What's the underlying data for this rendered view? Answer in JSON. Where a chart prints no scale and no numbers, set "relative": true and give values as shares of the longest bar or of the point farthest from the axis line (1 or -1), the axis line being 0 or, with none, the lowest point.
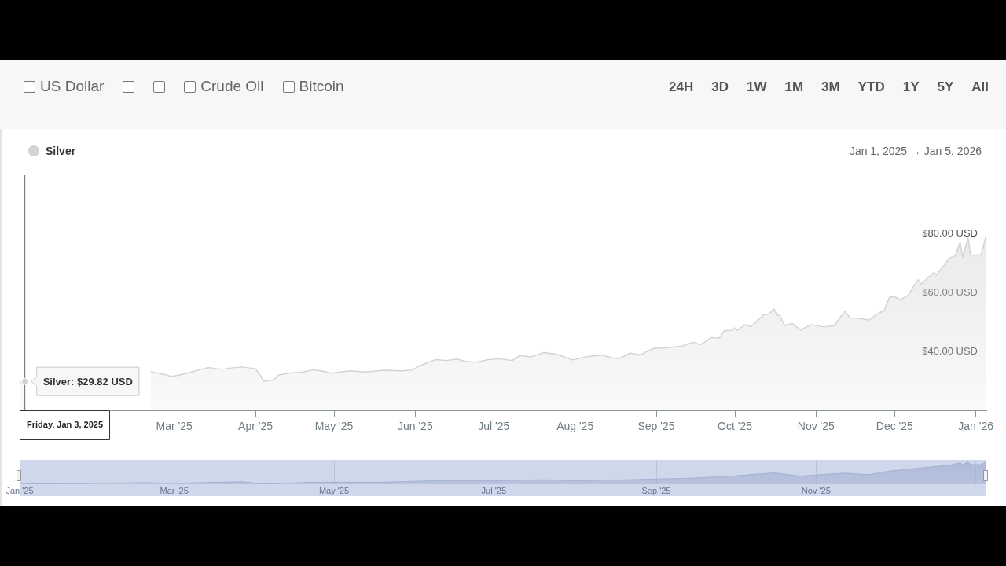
{
  "chart_data": [
    {
      "type": "other",
      "categories": [
        "US Dollar",
        null,
        null,
        "Crude Oil",
        "Bitcoin"
      ],
      "annotations": [
        "24H",
        "3D",
        "1W",
        "1M",
        "3M",
        "YTD",
        "1Y",
        "5Y",
        "All"
      ]
    },
    {
      "type": "area",
      "subtitle": "Jan 1, 2025 → Jan 5, 2026",
      "legend": "top left",
      "series": [
        {
          "name": "Silver",
          "color": "#d3d3d3",
          "x": [
            "2025-01-01",
            "2025-01-03",
            "2025-01-25",
            "2025-02-20",
            "2025-02-25",
            "2025-02-28",
            "2025-03-03",
            "2025-03-07",
            "2025-03-12",
            "2025-03-14",
            "2025-03-19",
            "2025-03-24",
            "2025-03-27",
            "2025-04-01",
            "2025-04-03",
            "2025-04-04",
            "2025-04-08",
            "2025-04-10",
            "2025-04-14",
            "2025-04-19",
            "2025-04-23",
            "2025-04-26",
            "2025-04-30",
            "2025-05-02",
            "2025-05-07",
            "2025-05-13",
            "2025-05-20",
            "2025-05-27",
            "2025-05-31",
            "2025-06-02",
            "2025-06-06",
            "2025-06-09",
            "2025-06-13",
            "2025-06-17",
            "2025-06-20",
            "2025-06-24",
            "2025-06-29",
            "2025-07-03",
            "2025-07-08",
            "2025-07-11",
            "2025-07-15",
            "2025-07-20",
            "2025-07-25",
            "2025-07-31",
            "2025-08-05",
            "2025-08-11",
            "2025-08-15",
            "2025-08-18",
            "2025-08-22",
            "2025-08-26",
            "2025-08-31",
            "2025-09-07",
            "2025-09-11",
            "2025-09-15",
            "2025-09-18",
            "2025-09-22",
            "2025-09-25",
            "2025-09-27",
            "2025-09-30",
            "2025-10-01",
            "2025-10-02",
            "2025-10-05",
            "2025-10-07",
            "2025-10-09",
            "2025-10-12",
            "2025-10-14",
            "2025-10-16",
            "2025-10-17",
            "2025-10-18",
            "2025-10-20",
            "2025-10-23",
            "2025-10-26",
            "2025-10-30",
            "2025-11-04",
            "2025-11-08",
            "2025-11-12",
            "2025-11-14",
            "2025-11-18",
            "2025-11-21",
            "2025-11-25",
            "2025-11-27",
            "2025-11-29",
            "2025-12-01",
            "2025-12-03",
            "2025-12-06",
            "2025-12-08",
            "2025-12-10",
            "2025-12-11",
            "2025-12-13",
            "2025-12-16",
            "2025-12-17",
            "2025-12-22",
            "2025-12-24",
            "2025-12-26",
            "2025-12-27",
            "2025-12-29",
            "2025-12-30",
            "2026-01-03",
            "2026-01-05"
          ],
          "values": [
            29.3,
            29.82,
            null,
            33.1,
            32.2,
            31.5,
            32.0,
            32.8,
            34.1,
            34.5,
            33.9,
            34.5,
            34.7,
            34.1,
            31.7,
            29.8,
            30.4,
            32.0,
            32.6,
            33.0,
            33.7,
            33.4,
            32.6,
            32.8,
            33.4,
            33.0,
            33.6,
            33.4,
            33.7,
            34.8,
            36.3,
            37.2,
            36.9,
            37.4,
            36.6,
            36.3,
            37.2,
            37.5,
            36.9,
            38.6,
            38.1,
            39.6,
            39.0,
            37.1,
            38.1,
            38.8,
            37.8,
            37.6,
            39.4,
            38.9,
            41.0,
            41.4,
            41.8,
            43.1,
            42.3,
            44.7,
            44.5,
            47.0,
            47.2,
            48.0,
            47.2,
            49.1,
            48.4,
            49.9,
            52.4,
            52.7,
            54.4,
            52.1,
            52.4,
            48.8,
            49.5,
            47.2,
            49.1,
            48.3,
            48.8,
            53.7,
            51.3,
            51.2,
            50.6,
            53.0,
            53.8,
            58.4,
            58.6,
            57.5,
            58.9,
            61.7,
            64.4,
            62.8,
            64.4,
            66.8,
            66.0,
            71.7,
            72.3,
            76.9,
            72.0,
            78.6,
            72.6,
            72.8,
            79.6
          ]
        }
      ],
      "xlim": [
        "2025-01-01",
        "2026-01-05"
      ],
      "xticks": [
        {
          "value": "2025-03-01",
          "label": "Mar '25"
        },
        {
          "value": "2025-04-01",
          "label": "Apr '25"
        },
        {
          "value": "2025-05-01",
          "label": "May '25"
        },
        {
          "value": "2025-06-01",
          "label": "Jun '25"
        },
        {
          "value": "2025-07-01",
          "label": "Jul '25"
        },
        {
          "value": "2025-08-01",
          "label": "Aug '25"
        },
        {
          "value": "2025-09-01",
          "label": "Sep '25"
        },
        {
          "value": "2025-10-01",
          "label": "Oct '25"
        },
        {
          "value": "2025-11-01",
          "label": "Nov '25"
        },
        {
          "value": "2025-12-01",
          "label": "Dec '25"
        },
        {
          "value": "2026-01-01",
          "label": "Jan '26"
        }
      ],
      "ylim": [
        20,
        100
      ],
      "yticks": [
        {
          "value": 40,
          "label": "$40.00 USD"
        },
        {
          "value": 60,
          "label": "$60.00 USD"
        },
        {
          "value": 80,
          "label": "$80.00 USD"
        }
      ],
      "ref_lines": [
        {
          "axis": "x",
          "value": "2025-01-03",
          "label": "Friday, Jan 3, 2025",
          "color": "#5b6b73"
        }
      ],
      "annotations": [
        {
          "text": "Silver: $29.82 USD",
          "x": "2025-01-03",
          "y": 29.82
        }
      ]
    },
    {
      "type": "area",
      "relative": true,
      "grid": "x",
      "series": [
        {
          "color": "#a3b1d3",
          "x": [
            "2025-01-01",
            "2025-01-03",
            "2025-01-20",
            "2025-02-10",
            "2025-02-20",
            "2025-02-28",
            "2025-03-27",
            "2025-04-04",
            "2025-04-23",
            "2025-05-20",
            "2025-06-09",
            "2025-07-03",
            "2025-07-20",
            "2025-07-31",
            "2025-08-22",
            "2025-09-15",
            "2025-09-30",
            "2025-10-16",
            "2025-10-26",
            "2025-11-12",
            "2025-11-21",
            "2025-11-29",
            "2025-12-10",
            "2025-12-22",
            "2025-12-26",
            "2025-12-27",
            "2025-12-29",
            "2025-12-30",
            "2026-01-03",
            "2026-01-05"
          ],
          "values": [
            0,
            0.01,
            0.03,
            0.06,
            0.07,
            0.04,
            0.11,
            0.01,
            0.09,
            0.09,
            0.16,
            0.16,
            0.2,
            0.16,
            0.2,
            0.27,
            0.36,
            0.5,
            0.36,
            0.49,
            0.42,
            0.58,
            0.7,
            0.84,
            0.95,
            0.85,
            0.98,
            0.86,
            0.86,
            1
          ]
        }
      ],
      "xlim": [
        "2025-01-01",
        "2026-01-05"
      ],
      "xticks": [
        {
          "value": "2025-01-01",
          "label": "Jan '25"
        },
        {
          "value": "2025-03-01",
          "label": "Mar '25"
        },
        {
          "value": "2025-05-01",
          "label": "May '25"
        },
        {
          "value": "2025-07-01",
          "label": "Jul '25"
        },
        {
          "value": "2025-09-01",
          "label": "Sep '25"
        },
        {
          "value": "2025-11-01",
          "label": "Nov '25"
        },
        {
          "value": "2026-01-01",
          "label": null
        }
      ]
    }
  ]
}
